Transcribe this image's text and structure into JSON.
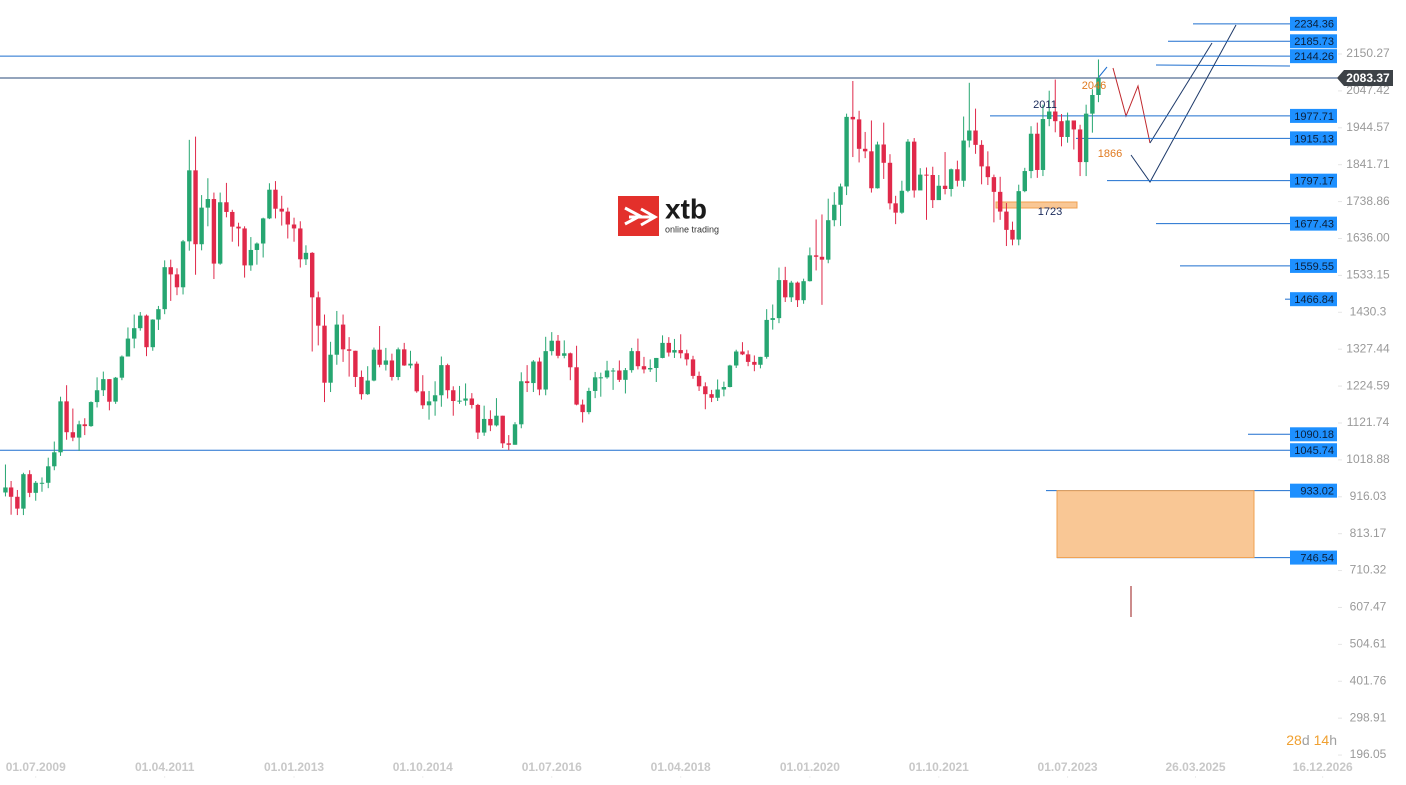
{
  "chart_data": {
    "type": "candlestick",
    "x": [
      "2009-02",
      "2009-03",
      "2009-04",
      "2009-05",
      "2009-06",
      "2009-07",
      "2009-08",
      "2009-09",
      "2009-10",
      "2009-11",
      "2009-12",
      "2010-01",
      "2010-02",
      "2010-03",
      "2010-04",
      "2010-05",
      "2010-06",
      "2010-07",
      "2010-08",
      "2010-09",
      "2010-10",
      "2010-11",
      "2010-12",
      "2011-01",
      "2011-02",
      "2011-03",
      "2011-04",
      "2011-05",
      "2011-06",
      "2011-07",
      "2011-08",
      "2011-09",
      "2011-10",
      "2011-11",
      "2011-12",
      "2012-01",
      "2012-02",
      "2012-03",
      "2012-04",
      "2012-05",
      "2012-06",
      "2012-07",
      "2012-08",
      "2012-09",
      "2012-10",
      "2012-11",
      "2012-12",
      "2013-01",
      "2013-02",
      "2013-03",
      "2013-04",
      "2013-05",
      "2013-06",
      "2013-07",
      "2013-08",
      "2013-09",
      "2013-10",
      "2013-11",
      "2013-12",
      "2014-01",
      "2014-02",
      "2014-03",
      "2014-04",
      "2014-05",
      "2014-06",
      "2014-07",
      "2014-08",
      "2014-09",
      "2014-10",
      "2014-11",
      "2014-12",
      "2015-01",
      "2015-02",
      "2015-03",
      "2015-04",
      "2015-05",
      "2015-06",
      "2015-07",
      "2015-08",
      "2015-09",
      "2015-10",
      "2015-11",
      "2015-12",
      "2016-01",
      "2016-02",
      "2016-03",
      "2016-04",
      "2016-05",
      "2016-06",
      "2016-07",
      "2016-08",
      "2016-09",
      "2016-10",
      "2016-11",
      "2016-12",
      "2017-01",
      "2017-02",
      "2017-03",
      "2017-04",
      "2017-05",
      "2017-06",
      "2017-07",
      "2017-08",
      "2017-09",
      "2017-10",
      "2017-11",
      "2017-12",
      "2018-01",
      "2018-02",
      "2018-03",
      "2018-04",
      "2018-05",
      "2018-06",
      "2018-07",
      "2018-08",
      "2018-09",
      "2018-10",
      "2018-11",
      "2018-12",
      "2019-01",
      "2019-02",
      "2019-03",
      "2019-04",
      "2019-05",
      "2019-06",
      "2019-07",
      "2019-08",
      "2019-09",
      "2019-10",
      "2019-11",
      "2019-12",
      "2020-01",
      "2020-02",
      "2020-03",
      "2020-04",
      "2020-05",
      "2020-06",
      "2020-07",
      "2020-08",
      "2020-09",
      "2020-10",
      "2020-11",
      "2020-12",
      "2021-01",
      "2021-02",
      "2021-03",
      "2021-04",
      "2021-05",
      "2021-06",
      "2021-07",
      "2021-08",
      "2021-09",
      "2021-10",
      "2021-11",
      "2021-12",
      "2022-01",
      "2022-02",
      "2022-03",
      "2022-04",
      "2022-05",
      "2022-06",
      "2022-07",
      "2022-08",
      "2022-09",
      "2022-10",
      "2022-11",
      "2022-12",
      "2023-01",
      "2023-02",
      "2023-03",
      "2023-04",
      "2023-05",
      "2023-06",
      "2023-07",
      "2023-08",
      "2023-09",
      "2023-10",
      "2023-11",
      "2023-12"
    ],
    "open": [
      928,
      942,
      916,
      883,
      979,
      927,
      955,
      955,
      1001,
      1040,
      1182,
      1096,
      1081,
      1118,
      1113,
      1180,
      1213,
      1244,
      1181,
      1248,
      1307,
      1357,
      1386,
      1421,
      1333,
      1410,
      1439,
      1556,
      1536,
      1500,
      1628,
      1826,
      1620,
      1722,
      1746,
      1566,
      1737,
      1710,
      1669,
      1664,
      1561,
      1604,
      1622,
      1692,
      1772,
      1719,
      1711,
      1675,
      1664,
      1578,
      1596,
      1472,
      1393,
      1234,
      1312,
      1396,
      1327,
      1323,
      1250,
      1202,
      1240,
      1326,
      1284,
      1296,
      1250,
      1327,
      1282,
      1287,
      1210,
      1171,
      1182,
      1199,
      1283,
      1213,
      1183,
      1184,
      1190,
      1172,
      1095,
      1133,
      1115,
      1142,
      1065,
      1061,
      1118,
      1238,
      1233,
      1293,
      1215,
      1322,
      1351,
      1309,
      1316,
      1277,
      1173,
      1152,
      1211,
      1249,
      1249,
      1268,
      1268,
      1242,
      1269,
      1322,
      1280,
      1271,
      1275,
      1303,
      1345,
      1318,
      1325,
      1316,
      1299,
      1253,
      1224,
      1202,
      1192,
      1215,
      1222,
      1282,
      1321,
      1313,
      1292,
      1284,
      1306,
      1409,
      1414,
      1520,
      1472,
      1513,
      1464,
      1517,
      1589,
      1585,
      1577,
      1687,
      1730,
      1781,
      1975,
      1968,
      1886,
      1879,
      1776,
      1898,
      1847,
      1734,
      1708,
      1769,
      1906,
      1770,
      1814,
      1813,
      1743,
      1783,
      1774,
      1829,
      1797,
      1909,
      1937,
      1897,
      1837,
      1807,
      1766,
      1711,
      1660,
      1633,
      1768,
      1824,
      1928,
      1827,
      1969,
      1990,
      1963,
      1919,
      1965,
      1940,
      1849,
      1984,
      2036
    ],
    "high": [
      1006,
      960,
      935,
      983,
      990,
      960,
      970,
      1025,
      1070,
      1195,
      1227,
      1162,
      1128,
      1135,
      1182,
      1249,
      1265,
      1244,
      1250,
      1310,
      1388,
      1424,
      1431,
      1424,
      1411,
      1448,
      1575,
      1577,
      1553,
      1632,
      1911,
      1920,
      1757,
      1804,
      1764,
      1764,
      1791,
      1716,
      1680,
      1670,
      1640,
      1625,
      1694,
      1790,
      1796,
      1755,
      1722,
      1694,
      1684,
      1617,
      1598,
      1488,
      1424,
      1348,
      1434,
      1424,
      1361,
      1323,
      1268,
      1280,
      1332,
      1392,
      1331,
      1315,
      1332,
      1345,
      1323,
      1293,
      1255,
      1211,
      1238,
      1307,
      1287,
      1224,
      1225,
      1232,
      1205,
      1175,
      1170,
      1157,
      1191,
      1142,
      1088,
      1124,
      1263,
      1283,
      1297,
      1304,
      1362,
      1375,
      1367,
      1352,
      1318,
      1337,
      1187,
      1220,
      1264,
      1262,
      1295,
      1275,
      1296,
      1275,
      1331,
      1357,
      1306,
      1299,
      1303,
      1366,
      1361,
      1356,
      1369,
      1326,
      1309,
      1265,
      1235,
      1214,
      1243,
      1237,
      1284,
      1326,
      1347,
      1324,
      1310,
      1306,
      1439,
      1452,
      1555,
      1557,
      1518,
      1516,
      1524,
      1611,
      1689,
      1703,
      1747,
      1765,
      1789,
      1984,
      2075,
      1992,
      1933,
      1965,
      1906,
      1959,
      1871,
      1755,
      1797,
      1913,
      1916,
      1832,
      1834,
      1836,
      1813,
      1877,
      1831,
      1853,
      1976,
      2070,
      1998,
      1910,
      1879,
      1814,
      1808,
      1735,
      1683,
      1786,
      1833,
      1949,
      1959,
      2009,
      2048,
      2079,
      1983,
      1987,
      1946,
      1953,
      2009,
      2052,
      2135
    ],
    "low": [
      917,
      866,
      865,
      865,
      915,
      905,
      930,
      940,
      990,
      1030,
      1075,
      1071,
      1044,
      1088,
      1111,
      1165,
      1197,
      1157,
      1175,
      1241,
      1315,
      1330,
      1379,
      1308,
      1323,
      1381,
      1425,
      1462,
      1478,
      1480,
      1602,
      1535,
      1603,
      1670,
      1523,
      1563,
      1695,
      1627,
      1614,
      1527,
      1546,
      1563,
      1583,
      1690,
      1692,
      1672,
      1636,
      1627,
      1555,
      1562,
      1321,
      1338,
      1180,
      1208,
      1284,
      1292,
      1251,
      1222,
      1187,
      1200,
      1238,
      1277,
      1268,
      1240,
      1241,
      1281,
      1274,
      1206,
      1161,
      1131,
      1142,
      1167,
      1190,
      1142,
      1175,
      1170,
      1162,
      1077,
      1086,
      1099,
      1112,
      1052,
      1046,
      1061,
      1107,
      1208,
      1208,
      1199,
      1199,
      1310,
      1302,
      1302,
      1241,
      1171,
      1123,
      1146,
      1191,
      1195,
      1245,
      1214,
      1236,
      1204,
      1262,
      1271,
      1260,
      1264,
      1236,
      1302,
      1307,
      1303,
      1302,
      1282,
      1245,
      1211,
      1160,
      1180,
      1183,
      1196,
      1221,
      1275,
      1311,
      1280,
      1266,
      1274,
      1301,
      1382,
      1400,
      1459,
      1459,
      1445,
      1454,
      1516,
      1547,
      1451,
      1567,
      1670,
      1671,
      1757,
      1863,
      1848,
      1860,
      1764,
      1775,
      1802,
      1717,
      1676,
      1705,
      1765,
      1750,
      1790,
      1688,
      1721,
      1746,
      1759,
      1753,
      1781,
      1780,
      1890,
      1872,
      1787,
      1785,
      1681,
      1688,
      1615,
      1617,
      1617,
      1765,
      1804,
      1805,
      1810,
      1949,
      1932,
      1893,
      1903,
      1884,
      1810,
      1810,
      1931,
      2016
    ],
    "close": [
      942,
      916,
      883,
      979,
      927,
      955,
      955,
      1001,
      1040,
      1182,
      1096,
      1081,
      1118,
      1113,
      1180,
      1213,
      1244,
      1181,
      1248,
      1307,
      1357,
      1386,
      1421,
      1333,
      1410,
      1439,
      1556,
      1536,
      1500,
      1628,
      1826,
      1620,
      1722,
      1746,
      1566,
      1737,
      1710,
      1669,
      1664,
      1561,
      1604,
      1622,
      1692,
      1772,
      1719,
      1711,
      1675,
      1664,
      1578,
      1596,
      1472,
      1393,
      1234,
      1312,
      1396,
      1327,
      1323,
      1250,
      1202,
      1240,
      1326,
      1284,
      1296,
      1250,
      1327,
      1282,
      1287,
      1210,
      1171,
      1182,
      1199,
      1283,
      1213,
      1183,
      1184,
      1190,
      1172,
      1095,
      1133,
      1115,
      1142,
      1065,
      1061,
      1118,
      1238,
      1233,
      1293,
      1215,
      1322,
      1351,
      1309,
      1316,
      1277,
      1173,
      1152,
      1211,
      1249,
      1249,
      1268,
      1268,
      1242,
      1269,
      1322,
      1280,
      1271,
      1275,
      1303,
      1345,
      1318,
      1325,
      1316,
      1299,
      1253,
      1224,
      1202,
      1192,
      1215,
      1222,
      1282,
      1321,
      1313,
      1292,
      1284,
      1306,
      1409,
      1414,
      1520,
      1472,
      1513,
      1464,
      1517,
      1589,
      1585,
      1577,
      1687,
      1730,
      1781,
      1975,
      1968,
      1886,
      1879,
      1776,
      1898,
      1847,
      1734,
      1708,
      1769,
      1906,
      1770,
      1814,
      1813,
      1743,
      1783,
      1774,
      1829,
      1797,
      1909,
      1937,
      1897,
      1837,
      1807,
      1766,
      1711,
      1660,
      1633,
      1768,
      1824,
      1928,
      1827,
      1969,
      1990,
      1963,
      1919,
      1965,
      1940,
      1849,
      1984,
      2036,
      2083
    ],
    "up_color": "#26a671",
    "down_color": "#e0294a",
    "xlim": [
      "2009-01-05",
      "2028-02-02"
    ],
    "xticks": [
      {
        "value": "2009-07-01",
        "label": "01.07.2009"
      },
      {
        "value": "2011-04-01",
        "label": "01.04.2011"
      },
      {
        "value": "2013-01-01",
        "label": "01.01.2013"
      },
      {
        "value": "2014-10-01",
        "label": "01.10.2014"
      },
      {
        "value": "2016-07-01",
        "label": "01.07.2016"
      },
      {
        "value": "2018-04-01",
        "label": "01.04.2018"
      },
      {
        "value": "2020-01-01",
        "label": "01.01.2020"
      },
      {
        "value": "2021-10-01",
        "label": "01.10.2021"
      },
      {
        "value": "2023-07-01",
        "label": "01.07.2023"
      },
      {
        "value": "2025-03-26",
        "label": "26.03.2025"
      },
      {
        "value": "2026-12-16",
        "label": "16.12.2026"
      }
    ],
    "ylim": [
      154.4,
      2300.8
    ],
    "yticks": [
      2150.27,
      2047.42,
      1944.57,
      1841.71,
      1738.86,
      {
        "value": 1636,
        "label": "1636.00"
      },
      1533.15,
      1430.3,
      1327.44,
      1224.59,
      1121.74,
      1018.88,
      916.03,
      813.17,
      710.32,
      607.47,
      504.61,
      401.76,
      298.91,
      196.05
    ],
    "grid": false,
    "levels": [
      2234.36,
      2185.73,
      2144.26,
      1977.71,
      1915.13,
      1797.17,
      1677.43,
      1559.55,
      1466.84,
      1090.18,
      1045.74,
      933.02,
      746.54
    ],
    "level_color": "#1e6fcf",
    "last_price": 2083.37,
    "annotations": [
      "2011",
      "2046",
      "1866",
      "1723"
    ],
    "countdown": [
      "28",
      "d",
      "14",
      "h"
    ],
    "logo": {
      "name": "xtb",
      "tagline": "online trading"
    }
  }
}
